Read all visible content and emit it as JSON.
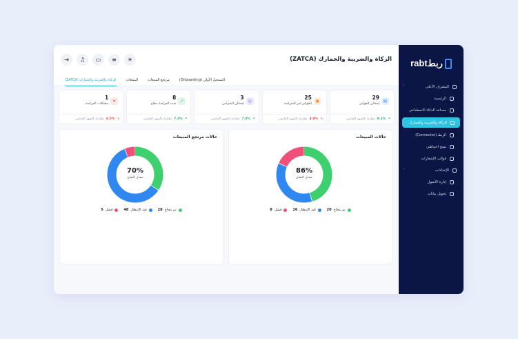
{
  "app": {
    "logo_text": "rabtربط"
  },
  "header": {
    "title": "الزكاة والضريبة والجمارك (ZATCA)",
    "icons": [
      "logout-icon",
      "bell-icon",
      "monitor-icon",
      "menu-icon",
      "sun-icon"
    ]
  },
  "tabs": [
    {
      "label": "الزكاة والضريبة والجمارك (ZATCA)",
      "active": true
    },
    {
      "label": "المبيعات",
      "active": false
    },
    {
      "label": "مرتجع المبيعات",
      "active": false
    },
    {
      "label": "التسجيل الأولي (Onboarding)",
      "active": false
    }
  ],
  "sidebar": {
    "items": [
      {
        "label": "المشرف الأعلى",
        "chevron": "˅",
        "sub": false,
        "active": false
      },
      {
        "label": "الرئيسية",
        "sub": true,
        "active": false
      },
      {
        "label": "مساعد الذكاء الاصطناعي",
        "sub": true,
        "active": false
      },
      {
        "label": "الزكاة والضريبة والجمارك",
        "sub": true,
        "active": true
      },
      {
        "label": "الربط (Connector)",
        "sub": true,
        "active": false
      },
      {
        "label": "نسخ احتياطي",
        "sub": true,
        "active": false
      },
      {
        "label": "قوالب الإشعارات",
        "sub": true,
        "active": false
      },
      {
        "label": "الإعدادات",
        "chevron": "˅",
        "sub": false,
        "active": false
      },
      {
        "label": "إدارة الأصول",
        "sub": true,
        "active": false
      },
      {
        "label": "تحويل بيانات",
        "sub": true,
        "active": false
      }
    ]
  },
  "cards": [
    {
      "value": "29",
      "label": "إجمالي الفواتير",
      "pct": "8.1%",
      "trend": "up",
      "foot": "مقارنة بالشهر الماضي",
      "color": "#3f8cff"
    },
    {
      "value": "25",
      "label": "الفواتير غير المتزامنة",
      "pct": "4.9%",
      "trend": "down",
      "foot": "مقارنة بالشهر الماضي",
      "color": "#f08a24"
    },
    {
      "value": "3",
      "label": "إجمالي المتزامن",
      "pct": "7.3%",
      "trend": "up",
      "foot": "مقارنة بالشهر الماضي",
      "color": "#7b5cf0"
    },
    {
      "value": "8",
      "label": "تمت المزامنة بنجاح",
      "pct": "7.3%",
      "trend": "up",
      "foot": "مقارنة بالشهر الماضي",
      "color": "#20b26b"
    },
    {
      "value": "1",
      "label": "مشكلات المزامنة",
      "pct": "4.5%",
      "trend": "down",
      "foot": "مقارنة بالشهر الماضي",
      "color": "#e2483d"
    }
  ],
  "chart_data": [
    {
      "type": "pie",
      "title": "حالات المبيعات",
      "center_value": "86%",
      "center_label": "معدل النجاح",
      "series": [
        {
          "name": "تم بنجاح",
          "value": 20,
          "color": "#3ecf6e"
        },
        {
          "name": "قيد الإنتظار",
          "value": 16,
          "color": "#2f87ef"
        },
        {
          "name": "فشل",
          "value": 8,
          "color": "#ef4f78"
        }
      ]
    },
    {
      "type": "pie",
      "title": "حالات مرتجع المبيعات",
      "center_value": "70%",
      "center_label": "معدل النجاح",
      "series": [
        {
          "name": "تم بنجاح",
          "value": 28,
          "color": "#3ecf6e"
        },
        {
          "name": "قيد الإنتظار",
          "value": 48,
          "color": "#2f87ef"
        },
        {
          "name": "فشل",
          "value": 5,
          "color": "#ef4f78"
        }
      ]
    }
  ]
}
